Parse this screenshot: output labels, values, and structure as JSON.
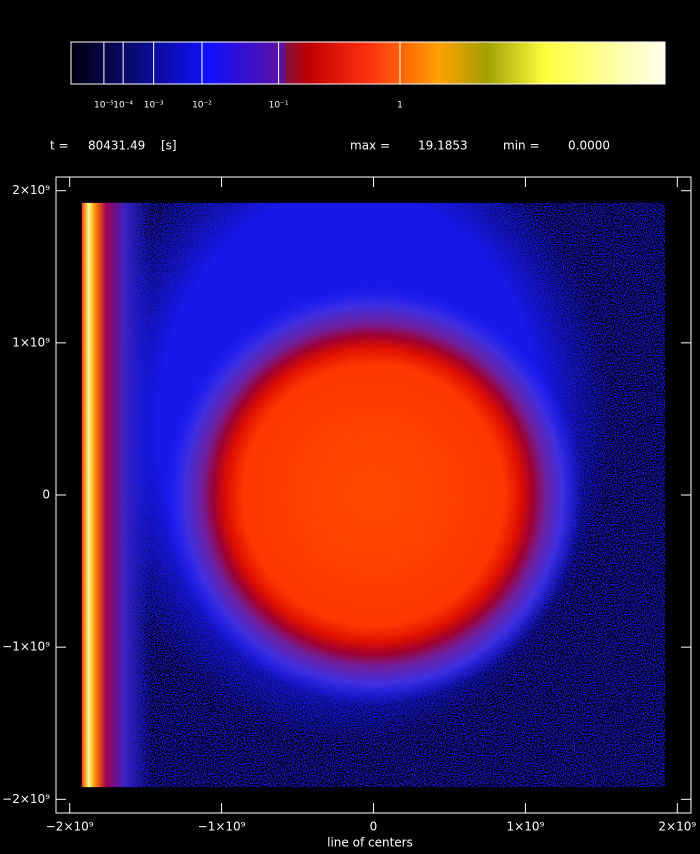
{
  "chart_data": {
    "type": "image",
    "xlabel": "line of centers",
    "time_label": "t =",
    "time": 80431.49,
    "time_unit": "[s]",
    "max_label": "max =",
    "max": 19.1853,
    "min_label": "min =",
    "min": {
      "value": 0,
      "label": "0.0000"
    },
    "color_scale": "power",
    "color_exponent": 0.2,
    "clim": [
      0,
      19.1853
    ],
    "colorbar_ticks": [
      {
        "value": 1e-05,
        "label": "10⁻⁵"
      },
      {
        "value": 0.0001,
        "label": "10⁻⁴"
      },
      {
        "value": 0.001,
        "label": "10⁻³"
      },
      {
        "value": 0.01,
        "label": "10⁻²"
      },
      {
        "value": 0.1,
        "label": "10⁻¹"
      },
      1
    ],
    "xlim": [
      -2090000000,
      2090000000
    ],
    "ylim": [
      -2090000000,
      2090000000
    ],
    "image_extent": [
      -1920000000,
      1920000000
    ],
    "xticks": [
      {
        "value": -2000000000,
        "label": "−2×10⁹"
      },
      {
        "value": -1000000000,
        "label": "−1×10⁹"
      },
      0,
      {
        "value": 1000000000,
        "label": "1×10⁹"
      },
      {
        "value": 2000000000,
        "label": "2×10⁹"
      }
    ],
    "yticks": [
      {
        "value": -2000000000,
        "label": "−2×10⁹"
      },
      {
        "value": -1000000000,
        "label": "−1×10⁹"
      },
      0,
      {
        "value": 1000000000,
        "label": "1×10⁹"
      },
      {
        "value": 2000000000,
        "label": "2×10⁹"
      }
    ]
  }
}
